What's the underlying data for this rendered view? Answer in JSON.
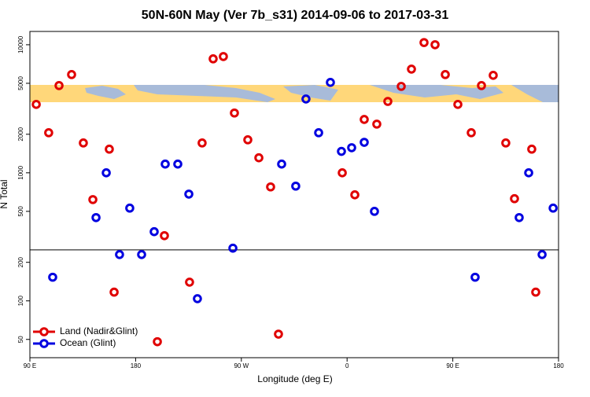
{
  "chart_data": {
    "type": "scatter",
    "title": "50N-60N May (Ver 7b_s31)   2014-09-06 to 2017-03-31",
    "xlabel": "Longitude (deg E)",
    "ylabel": "N Total",
    "xlim": [
      90,
      540
    ],
    "ylim": [
      36,
      12700
    ],
    "yscale": "log",
    "xticks": [
      {
        "value": 90,
        "label": "90 E"
      },
      180,
      {
        "value": 270,
        "label": "90 W"
      },
      {
        "value": 360,
        "label": "0"
      },
      {
        "value": 450,
        "label": "90 E"
      },
      {
        "value": 540,
        "label": "180"
      }
    ],
    "yticks": [
      50,
      100,
      200,
      500,
      1000,
      2000,
      5000,
      10000
    ],
    "hline": 250,
    "legend": "lower left",
    "series": [
      {
        "name": "Land (Nadir&Glint)",
        "color": "#e00000",
        "x": [
          95.4,
          106,
          114.8,
          125.5,
          135.5,
          143.6,
          157.6,
          161.7,
          198.5,
          204.5,
          225.9,
          236.6,
          246,
          254.7,
          264.1,
          275.5,
          284.9,
          294.9,
          301.6,
          355.9,
          366.6,
          374.6,
          385.3,
          394.7,
          406.1,
          414.8,
          425.5,
          434.9,
          443.6,
          454.3,
          465.7,
          474.4,
          484.4,
          495.1,
          502.5,
          517.2,
          520.6
        ],
        "values": [
          3420,
          2055,
          4800,
          5850,
          1710,
          618,
          1530,
          117,
          48,
          323,
          140,
          1710,
          7760,
          8090,
          2930,
          1810,
          1310,
          776,
          55,
          1000,
          673,
          2610,
          2400,
          3610,
          4730,
          6450,
          10400,
          10000,
          5850,
          3420,
          2055,
          4800,
          5770,
          1710,
          628,
          1530,
          117
        ]
      },
      {
        "name": "Ocean (Glint)",
        "color": "#0000e0",
        "x": [
          109.4,
          146.3,
          155,
          166.3,
          175,
          185.1,
          195.8,
          205.2,
          215.9,
          225.3,
          232.6,
          262.8,
          304.3,
          316.3,
          325,
          335.8,
          345.8,
          355.2,
          363.9,
          374.6,
          383.3,
          469,
          506.5,
          514.6,
          526,
          535.4
        ],
        "values": [
          153,
          447,
          1000,
          230,
          530,
          230,
          347,
          1170,
          1170,
          682,
          104,
          258,
          1170,
          787,
          3770,
          2055,
          5080,
          1470,
          1570,
          1730,
          500,
          153,
          447,
          1000,
          230,
          530
        ]
      }
    ]
  }
}
